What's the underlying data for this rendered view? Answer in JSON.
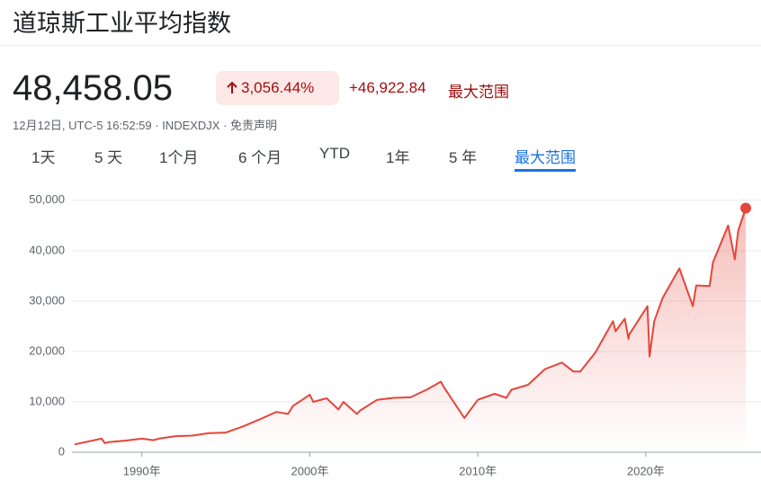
{
  "header": {
    "title": "道琼斯工业平均指数",
    "price": "48,458.05",
    "change_percent": "3,056.44%",
    "change": "+46,922.84",
    "range": "最大范围",
    "meta": "12月12日, UTC-5 16:52:59 · INDEXDJX · 免责声明"
  },
  "tabs": [
    "1天",
    "5 天",
    "1个月",
    "6 个月",
    "YTD",
    "1年",
    "5 年",
    "最大范围"
  ],
  "chart_data": {
    "type": "line",
    "color": "#e5453a",
    "x": [
      1986,
      1987.6,
      1987.8,
      1988,
      1989,
      1990,
      1990.7,
      1991,
      1992,
      1993,
      1994,
      1995,
      1996,
      1997,
      1998,
      1998.7,
      1999,
      2000,
      2000.2,
      2001,
      2001.7,
      2002,
      2002.8,
      2003,
      2004,
      2005,
      2006,
      2007,
      2007.8,
      2008,
      2008.8,
      2009.2,
      2010,
      2011,
      2011.7,
      2012,
      2013,
      2014,
      2015,
      2015.7,
      2016.1,
      2017,
      2018.05,
      2018.2,
      2018.75,
      2018.97,
      2019,
      2020.1,
      2020.22,
      2020.5,
      2021,
      2022,
      2022.8,
      2023,
      2023.8,
      2024,
      2024.9,
      2025.3,
      2025.5,
      2025.95
    ],
    "values": [
      1550,
      2700,
      1800,
      2000,
      2300,
      2700,
      2400,
      2700,
      3200,
      3300,
      3800,
      3900,
      5100,
      6500,
      8000,
      7600,
      9200,
      11400,
      10000,
      10700,
      8500,
      10000,
      7600,
      8300,
      10400,
      10800,
      10900,
      12500,
      14000,
      12800,
      8800,
      6800,
      10400,
      11600,
      10800,
      12400,
      13400,
      16500,
      17800,
      16000,
      16000,
      19800,
      26000,
      24000,
      26500,
      22500,
      23300,
      29000,
      19000,
      26000,
      30600,
      36500,
      29000,
      33100,
      33000,
      37700,
      45000,
      38300,
      44000,
      48458.05
    ],
    "xlim": [
      1986,
      2026
    ],
    "ylim": [
      0,
      53000
    ],
    "xticks": [
      {
        "value": 1990,
        "label": "1990年"
      },
      {
        "value": 2000,
        "label": "2000年"
      },
      {
        "value": 2010,
        "label": "2010年"
      },
      {
        "value": 2020,
        "label": "2020年"
      }
    ],
    "yticks": [
      0,
      {
        "value": 10000,
        "label": "10,000"
      },
      {
        "value": 20000,
        "label": "20,000"
      },
      {
        "value": 30000,
        "label": "30,000"
      },
      {
        "value": 40000,
        "label": "40,000"
      },
      {
        "value": 50000,
        "label": "50,000"
      }
    ],
    "grid": true
  }
}
